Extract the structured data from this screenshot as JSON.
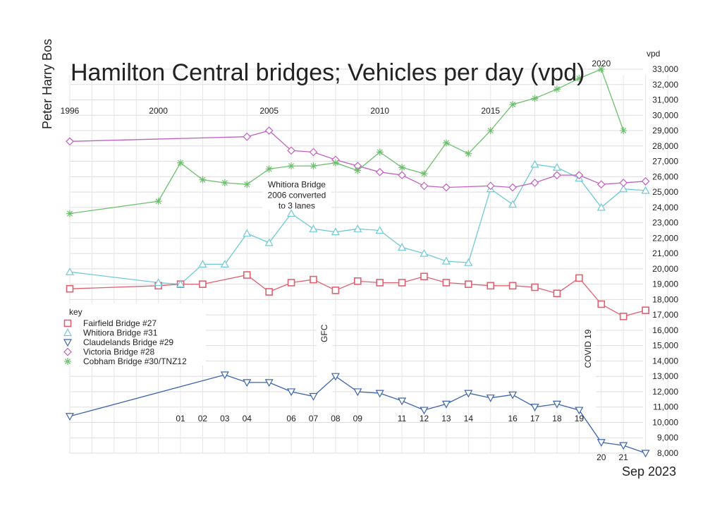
{
  "chart_data": {
    "type": "line",
    "title": "Hamilton Central bridges; Vehicles per day (vpd)",
    "author": "Peter Harry Bos",
    "date_label": "Sep 2023",
    "ylabel": "vpd",
    "ylim": [
      8000,
      33000
    ],
    "y_ticks": [
      "8,000",
      "9,000",
      "10,000",
      "11,000",
      "12,000",
      "13,000",
      "14,000",
      "15,000",
      "16,000",
      "17,000",
      "18,000",
      "19,000",
      "20,000",
      "21,000",
      "22,000",
      "23,000",
      "24,000",
      "25,000",
      "26,000",
      "27,000",
      "28,000",
      "29,000",
      "30,000",
      "31,000",
      "32,000",
      "33,000"
    ],
    "x_range": [
      1996,
      2023
    ],
    "top_year_labels": [
      "1996",
      "2000",
      "2005",
      "2010",
      "2015",
      "2020"
    ],
    "bottom_year_labels": [
      "01",
      "02",
      "03",
      "04",
      "06",
      "07",
      "08",
      "09",
      "11",
      "12",
      "13",
      "14",
      "16",
      "17",
      "18",
      "19",
      "20",
      "21"
    ],
    "legend_title": "key",
    "series": [
      {
        "name": "Fairfield Bridge #27",
        "color": "#e06070",
        "marker": "square",
        "x": [
          1996,
          2000,
          2001,
          2002,
          2004,
          2005,
          2006,
          2007,
          2008,
          2009,
          2010,
          2011,
          2012,
          2013,
          2014,
          2015,
          2016,
          2017,
          2018,
          2019,
          2020,
          2021,
          2022
        ],
        "y": [
          18700,
          18900,
          19000,
          19000,
          19600,
          18500,
          19100,
          19300,
          18600,
          19200,
          19100,
          19100,
          19500,
          19100,
          19000,
          18900,
          18900,
          18800,
          18400,
          19400,
          17700,
          16900,
          17300
        ]
      },
      {
        "name": "Whitiora Bridge #31",
        "color": "#70c8d8",
        "marker": "triangle-up",
        "x": [
          1996,
          2000,
          2001,
          2002,
          2003,
          2004,
          2005,
          2006,
          2007,
          2008,
          2009,
          2010,
          2011,
          2012,
          2013,
          2014,
          2015,
          2016,
          2017,
          2018,
          2019,
          2020,
          2021,
          2022
        ],
        "y": [
          19800,
          19100,
          19000,
          20300,
          20300,
          22300,
          21700,
          23600,
          22600,
          22400,
          22600,
          22500,
          21400,
          21000,
          20500,
          20400,
          25200,
          24200,
          26800,
          26600,
          25900,
          24000,
          25200,
          25100
        ]
      },
      {
        "name": "Claudelands Bridge #29",
        "color": "#3c64a8",
        "marker": "triangle-down",
        "x": [
          1996,
          2003,
          2004,
          2005,
          2006,
          2007,
          2008,
          2009,
          2010,
          2011,
          2012,
          2013,
          2014,
          2015,
          2016,
          2017,
          2018,
          2019,
          2020,
          2021,
          2022
        ],
        "y": [
          10400,
          13100,
          12600,
          12600,
          12000,
          11700,
          13000,
          12000,
          11900,
          11400,
          10800,
          11200,
          11900,
          11600,
          11800,
          11000,
          11200,
          10800,
          8700,
          8500,
          8000
        ]
      },
      {
        "name": "Victoria Bridge #28",
        "color": "#c060c0",
        "marker": "diamond",
        "x": [
          1996,
          2004,
          2005,
          2006,
          2007,
          2008,
          2009,
          2010,
          2011,
          2012,
          2013,
          2015,
          2016,
          2017,
          2018,
          2019,
          2020,
          2021,
          2022
        ],
        "y": [
          28300,
          28600,
          29000,
          27700,
          27600,
          27100,
          26700,
          26300,
          26100,
          25400,
          25300,
          25400,
          25300,
          25600,
          26100,
          26100,
          25500,
          25600,
          25700
        ]
      },
      {
        "name": "Cobham Bridge #30/TNZ12",
        "color": "#6cc06c",
        "marker": "asterisk",
        "x": [
          1996,
          2000,
          2001,
          2002,
          2003,
          2004,
          2005,
          2006,
          2007,
          2008,
          2009,
          2010,
          2011,
          2012,
          2013,
          2014,
          2015,
          2016,
          2017,
          2018,
          2019,
          2020,
          2021
        ],
        "y": [
          23600,
          24400,
          26900,
          25800,
          25600,
          25500,
          26500,
          26700,
          26700,
          26900,
          26400,
          27600,
          26600,
          26200,
          28200,
          27500,
          29000,
          30700,
          31100,
          31700,
          32400,
          33000,
          29000
        ]
      }
    ],
    "annotations": [
      {
        "text_lines": [
          "Whitiora Bridge",
          "2006 converted",
          "to 3 lanes"
        ],
        "x": 2006.25,
        "y": 25300
      },
      {
        "text": "GFC",
        "x": 2007.5,
        "y": 15800,
        "rotated": true
      },
      {
        "text": "COVID 19",
        "x": 2019.4,
        "y": 14800,
        "rotated": true
      }
    ],
    "grid": true,
    "legend_position": "left"
  }
}
